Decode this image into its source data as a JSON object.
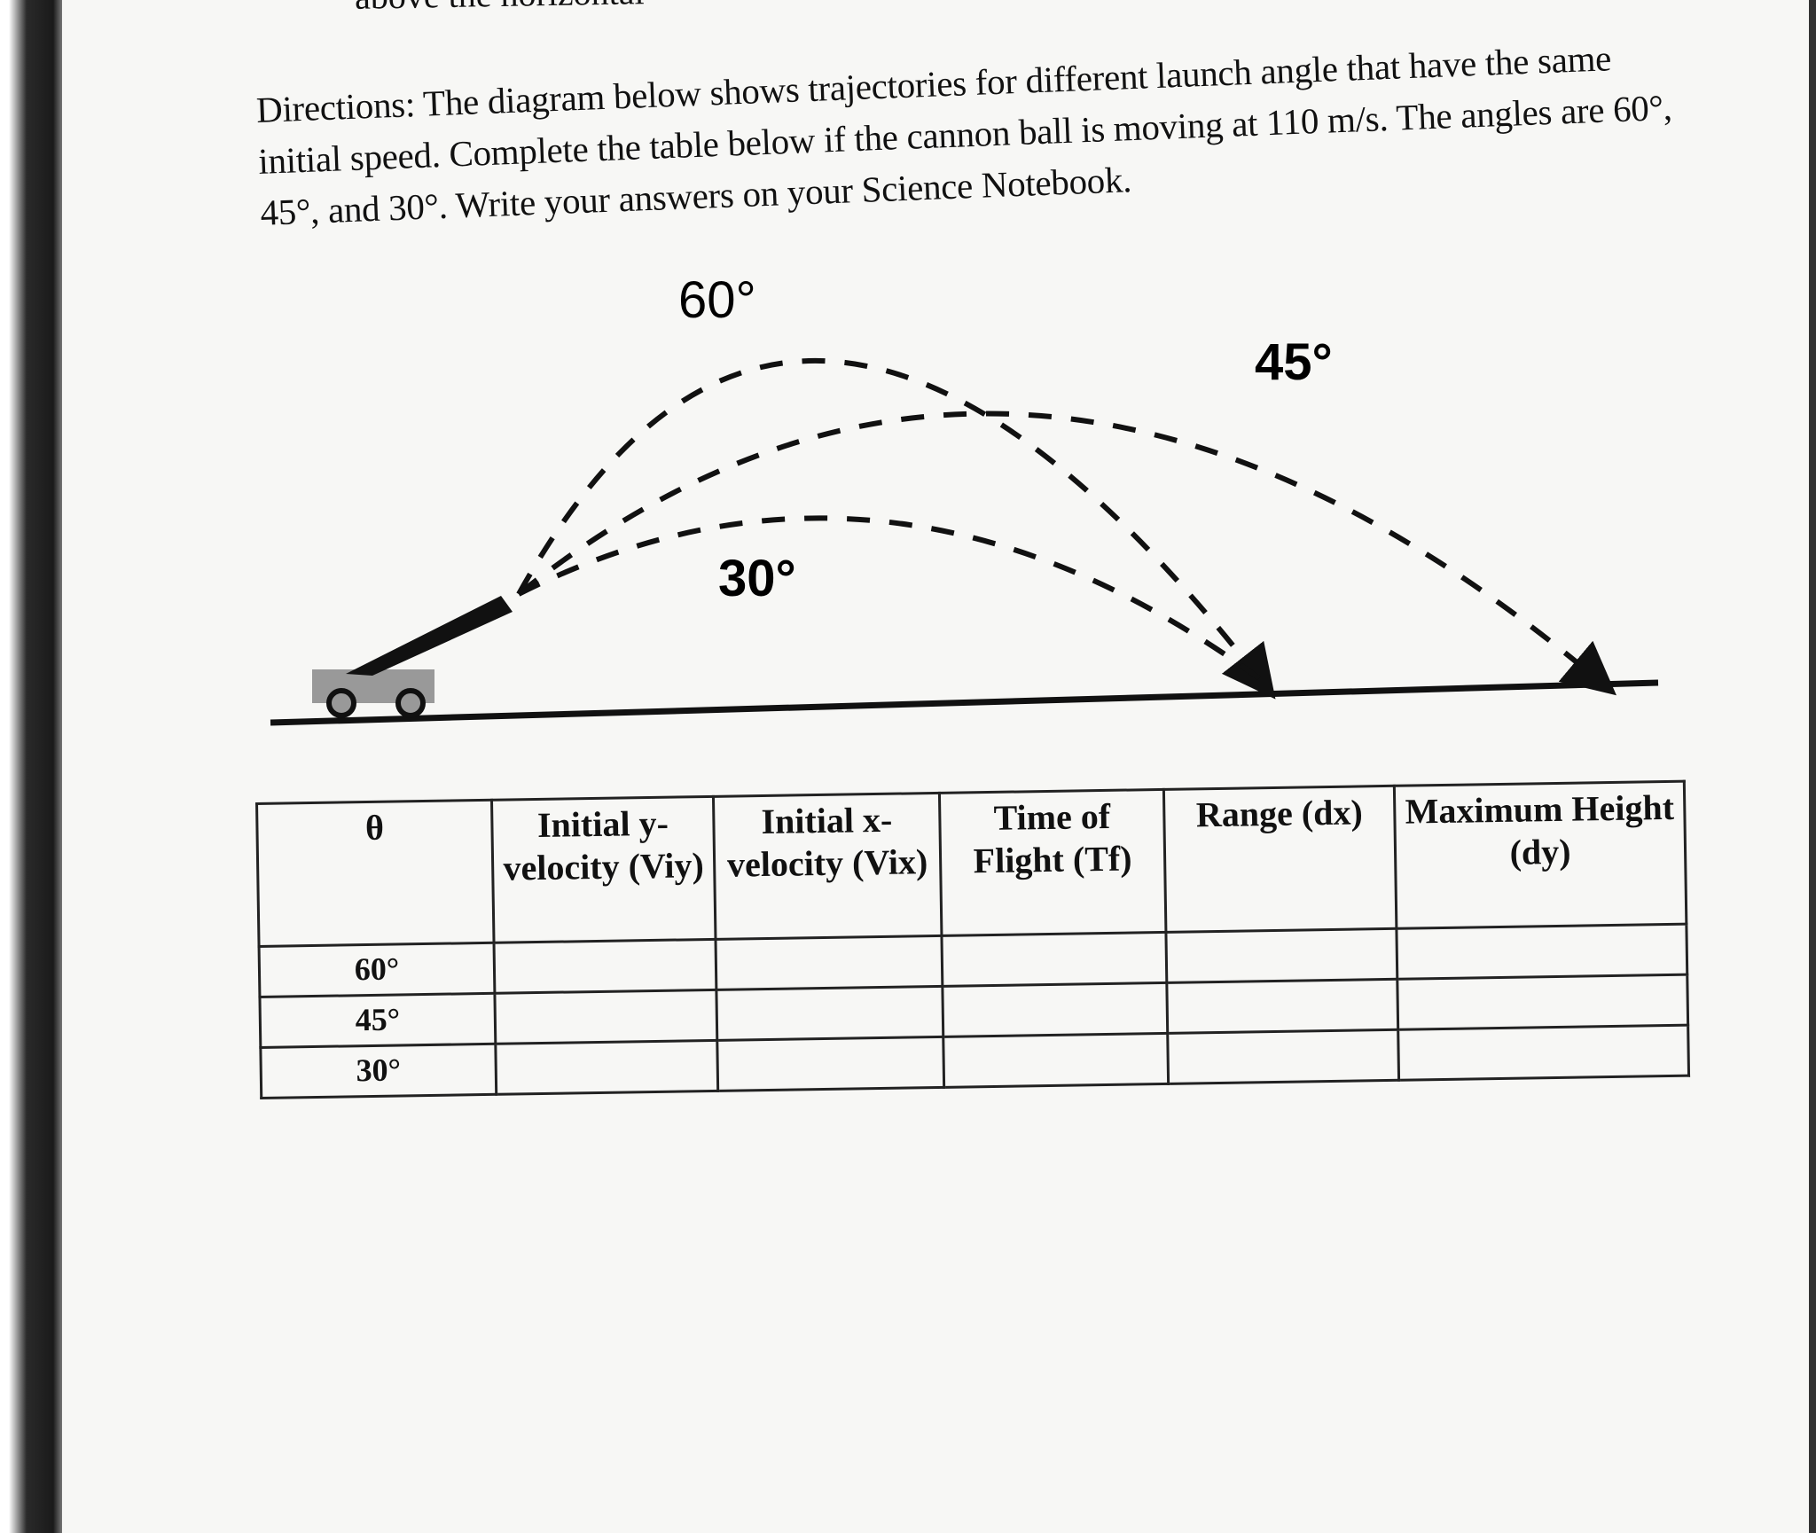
{
  "partial_text": "above the horizontal",
  "directions": "Directions: The diagram below shows trajectories for different launch angle that have the same initial speed. Complete the table below if the cannon ball is moving at 110 m/s. The angles are 60°, 45°, and 30°. Write your answers on your Science Notebook.",
  "diagram": {
    "labels": {
      "a60": "60°",
      "a45": "45°",
      "a30": "30°"
    }
  },
  "table": {
    "headers": [
      "θ",
      "Initial y-velocity (Viy)",
      "Initial x-velocity (Vix)",
      "Time of Flight (Tf)",
      "Range (dx)",
      "Maximum Height (dy)"
    ],
    "rows": [
      {
        "angle": "60°"
      },
      {
        "angle": "45°"
      },
      {
        "angle": "30°"
      }
    ]
  }
}
